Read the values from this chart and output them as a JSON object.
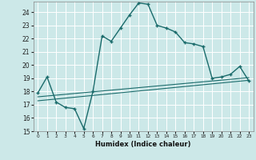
{
  "title": "",
  "xlabel": "Humidex (Indice chaleur)",
  "bg_color": "#cce8e8",
  "grid_color": "#ffffff",
  "line_color": "#1a6b6b",
  "xlim": [
    -0.5,
    23.5
  ],
  "ylim": [
    15,
    24.8
  ],
  "yticks": [
    15,
    16,
    17,
    18,
    19,
    20,
    21,
    22,
    23,
    24
  ],
  "xtick_labels": [
    "0",
    "1",
    "2",
    "3",
    "4",
    "5",
    "6",
    "7",
    "8",
    "9",
    "10",
    "11",
    "12",
    "13",
    "14",
    "15",
    "16",
    "17",
    "18",
    "19",
    "20",
    "21",
    "22",
    "23"
  ],
  "main_x": [
    0,
    1,
    2,
    3,
    4,
    5,
    6,
    7,
    8,
    9,
    10,
    11,
    12,
    13,
    14,
    15,
    16,
    17,
    18,
    19,
    20,
    21,
    22,
    23
  ],
  "main_y": [
    17.9,
    19.1,
    17.2,
    16.8,
    16.7,
    15.2,
    18.0,
    22.2,
    21.8,
    22.8,
    23.8,
    24.7,
    24.6,
    23.0,
    22.8,
    22.5,
    21.7,
    21.6,
    21.4,
    19.0,
    19.1,
    19.3,
    19.9,
    18.8
  ],
  "trend1_x": [
    0,
    23
  ],
  "trend1_y": [
    17.3,
    18.85
  ],
  "trend2_x": [
    0,
    23
  ],
  "trend2_y": [
    17.6,
    19.05
  ]
}
